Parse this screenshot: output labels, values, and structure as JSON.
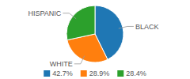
{
  "chart_data": {
    "type": "pie",
    "categories": [
      "BLACK",
      "WHITE",
      "HISPANIC"
    ],
    "values": [
      42.7,
      28.9,
      28.4
    ],
    "value_labels": [
      "42.7%",
      "28.9%",
      "28.4%"
    ],
    "legend": "bottom"
  }
}
